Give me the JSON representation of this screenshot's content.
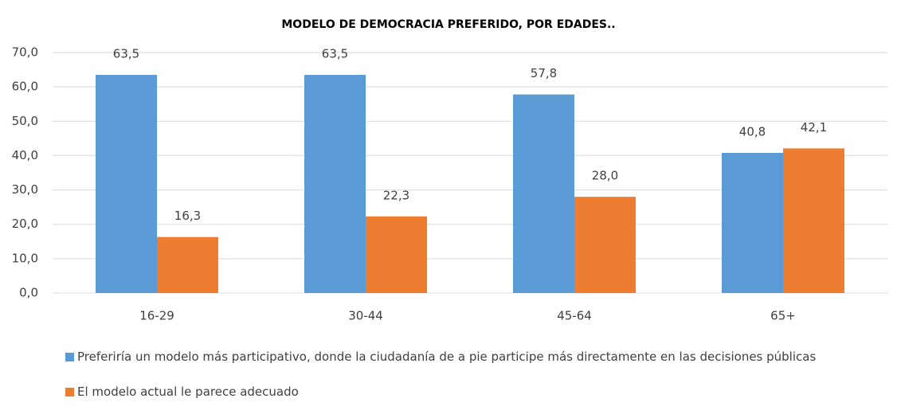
{
  "chart_data": {
    "type": "bar",
    "title": "MODELO DE DEMOCRACIA PREFERIDO, POR EDADES..",
    "categories": [
      "16-29",
      "30-44",
      "45-64",
      "65+"
    ],
    "series": [
      {
        "name": "Preferiría un modelo más participativo, donde la ciudadanía de a pie participe más directamente en las decisiones públicas",
        "color": "#5b9bd5",
        "values": [
          63.5,
          63.5,
          57.8,
          40.8
        ],
        "value_labels": [
          "63,5",
          "63,5",
          "57,8",
          "40,8"
        ]
      },
      {
        "name": "El modelo actual le parece adecuado",
        "color": "#ed7d31",
        "values": [
          16.3,
          22.3,
          28.0,
          42.1
        ],
        "value_labels": [
          "16,3",
          "22,3",
          "28,0",
          "42,1"
        ]
      }
    ],
    "ylim": [
      0,
      70
    ],
    "yticks": [
      {
        "value": 0,
        "label": "0,0"
      },
      {
        "value": 10,
        "label": "10,0"
      },
      {
        "value": 20,
        "label": "20,0"
      },
      {
        "value": 30,
        "label": "30,0"
      },
      {
        "value": 40,
        "label": "40,0"
      },
      {
        "value": 50,
        "label": "50,0"
      },
      {
        "value": 60,
        "label": "60,0"
      },
      {
        "value": 70,
        "label": "70,0"
      }
    ],
    "grid": true,
    "legend": "bottom"
  }
}
